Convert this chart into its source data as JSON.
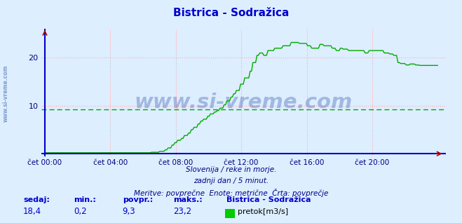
{
  "title": "Bistrica - Sodražica",
  "title_color": "#0000cc",
  "bg_color": "#ddeeff",
  "plot_bg_color": "#ddeeff",
  "line_color": "#00aa00",
  "axis_color": "#0000cc",
  "arrow_color": "#aa0000",
  "grid_color_v": "#ffaaaa",
  "grid_color_h": "#ffaaaa",
  "grid_alpha": 0.9,
  "xlabel_color": "#000080",
  "text_color": "#000080",
  "watermark": "www.si-vreme.com",
  "watermark_color": "#3355aa",
  "watermark_alpha": 0.35,
  "ylim": [
    0,
    25
  ],
  "yticks": [
    10,
    20
  ],
  "ytick_labels": [
    "10",
    "20"
  ],
  "xtick_labels": [
    "čet 00:00",
    "čet 04:00",
    "čet 08:00",
    "čet 12:00",
    "čet 16:00",
    "čet 20:00"
  ],
  "xtick_positions": [
    0,
    4,
    8,
    12,
    16,
    20
  ],
  "total_hours": 24,
  "subtitle1": "Slovenija / reke in morje.",
  "subtitle2": "zadnji dan / 5 minut.",
  "subtitle3": "Meritve: povprečne  Enote: metrične  Črta: povprečje",
  "footer_label1": "sedaj:",
  "footer_label2": "min.:",
  "footer_label3": "povpr.:",
  "footer_label4": "maks.:",
  "footer_val1": "18,4",
  "footer_val2": "0,2",
  "footer_val3": "9,3",
  "footer_val4": "23,2",
  "footer_station": "Bistrica - Sodražica",
  "footer_legend": "pretok[m3/s]",
  "legend_color": "#00cc00",
  "avg_line_value": 9.3,
  "avg_line_color": "#00aa00",
  "side_label": "www.si-vreme.com"
}
